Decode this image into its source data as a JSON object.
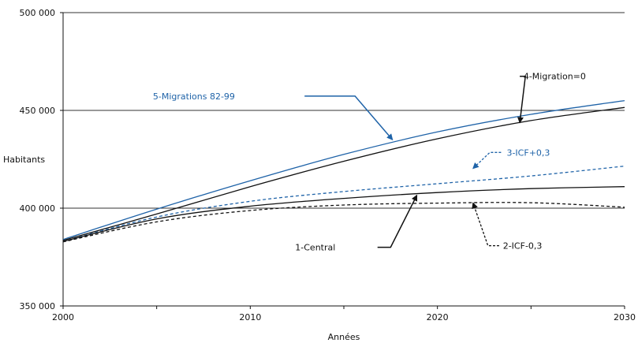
{
  "chart_data": {
    "type": "line",
    "xlabel": "Années",
    "ylabel": "Habitants",
    "xlim": [
      2000,
      2030
    ],
    "ylim": [
      350000,
      500000
    ],
    "x_ticks": [
      2000,
      2010,
      2020,
      2030
    ],
    "x_tick_labels": [
      "2000",
      "2010",
      "2020",
      "2030"
    ],
    "y_ticks": [
      350000,
      400000,
      450000,
      500000
    ],
    "y_tick_labels": [
      "350 000",
      "400 000",
      "450 000",
      "500 000"
    ],
    "grid": "horizontal",
    "legend": "none (inline labels with arrows)",
    "x": [
      2000,
      2005,
      2010,
      2015,
      2020,
      2025,
      2030
    ],
    "series": [
      {
        "name": "5-Migrations 82-99",
        "color": "#1f63a8",
        "dash": "solid",
        "values": [
          384000,
          399500,
          414000,
          427500,
          439000,
          448000,
          455000
        ]
      },
      {
        "name": "4-Migration=0",
        "color": "#111111",
        "dash": "solid",
        "values": [
          383500,
          397000,
          411000,
          424000,
          435500,
          444800,
          451500
        ]
      },
      {
        "name": "3-ICF+0,3",
        "color": "#1f63a8",
        "dash": "dashed",
        "values": [
          383000,
          395500,
          403500,
          408500,
          412500,
          416500,
          421500
        ]
      },
      {
        "name": "1-Central",
        "color": "#111111",
        "dash": "solid",
        "values": [
          383000,
          394500,
          401000,
          405000,
          408000,
          410000,
          411000
        ]
      },
      {
        "name": "2-ICF-0,3",
        "color": "#111111",
        "dash": "dashed",
        "values": [
          382800,
          393000,
          398800,
          401600,
          402600,
          402800,
          400500
        ]
      }
    ],
    "annotations": [
      {
        "text": "5-Migrations 82-99",
        "color": "#1f63a8",
        "dash": "solid",
        "label_at": [
          2004.8,
          457300
        ],
        "path": [
          [
            2012.9,
            457300
          ],
          [
            2015.6,
            457300
          ],
          [
            2017.6,
            435000
          ]
        ]
      },
      {
        "text": "4-Migration=0",
        "color": "#111111",
        "dash": "solid",
        "label_at": [
          2024.6,
          467600
        ],
        "path": [
          [
            2024.4,
            467400
          ],
          [
            2024.7,
            467400
          ],
          [
            2024.4,
            443700
          ]
        ]
      },
      {
        "text": "3-ICF+0,3",
        "color": "#1f63a8",
        "dash": "dashed",
        "label_at": [
          2023.7,
          428500
        ],
        "path": [
          [
            2023.4,
            428500
          ],
          [
            2022.8,
            428500
          ],
          [
            2021.9,
            420300
          ]
        ]
      },
      {
        "text": "1-Central",
        "color": "#111111",
        "dash": "solid",
        "label_at": [
          2012.4,
          380000
        ],
        "path": [
          [
            2016.8,
            380000
          ],
          [
            2017.5,
            380000
          ],
          [
            2018.9,
            406600
          ]
        ]
      },
      {
        "text": "2-ICF-0,3",
        "color": "#111111",
        "dash": "dashed",
        "label_at": [
          2023.5,
          380800
        ],
        "path": [
          [
            2023.3,
            380800
          ],
          [
            2022.7,
            380800
          ],
          [
            2021.9,
            402700
          ]
        ]
      }
    ]
  }
}
